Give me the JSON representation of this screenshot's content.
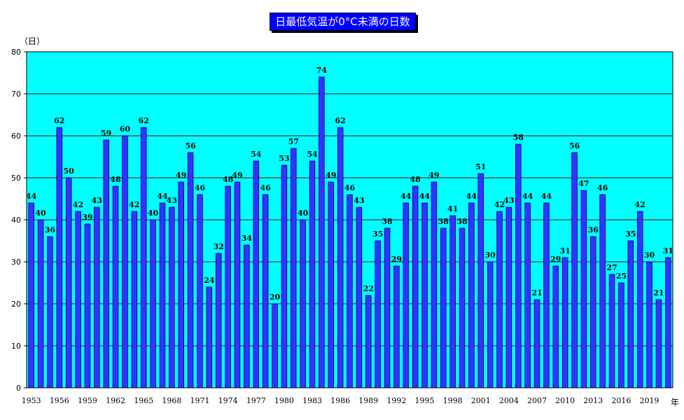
{
  "chart_data": {
    "type": "bar",
    "title": "日最低気温が0°C未満の日数",
    "ylabel": "（日）",
    "xlabel": "年",
    "ylim": [
      0,
      80
    ],
    "yticks": [
      0,
      10,
      20,
      30,
      40,
      50,
      60,
      70,
      80
    ],
    "grid": true,
    "plot_background": "#00ffff",
    "bar_color": "#3333ff",
    "gridline_color": "#800000",
    "x_tick_labels": [
      "1953",
      "1956",
      "1959",
      "1962",
      "1965",
      "1968",
      "1971",
      "1974",
      "1977",
      "1980",
      "1983",
      "1986",
      "1989",
      "1992",
      "1995",
      "1998",
      "2001",
      "2004",
      "2007",
      "2010",
      "2013",
      "2016",
      "2019"
    ],
    "categories": [
      "1953",
      "1954",
      "1955",
      "1956",
      "1957",
      "1958",
      "1959",
      "1960",
      "1961",
      "1962",
      "1963",
      "1964",
      "1965",
      "1966",
      "1967",
      "1968",
      "1969",
      "1970",
      "1971",
      "1972",
      "1973",
      "1974",
      "1975",
      "1976",
      "1977",
      "1978",
      "1979",
      "1980",
      "1981",
      "1982",
      "1983",
      "1984",
      "1985",
      "1986",
      "1987",
      "1988",
      "1989",
      "1990",
      "1991",
      "1992",
      "1993",
      "1994",
      "1995",
      "1996",
      "1997",
      "1998",
      "1999",
      "2000",
      "2001",
      "2002",
      "2003",
      "2004",
      "2005",
      "2006",
      "2007",
      "2008",
      "2009",
      "2010",
      "2011",
      "2012",
      "2013",
      "2014",
      "2015",
      "2016",
      "2017",
      "2018",
      "2019",
      "2020",
      "2021"
    ],
    "values": [
      44,
      40,
      36,
      62,
      50,
      42,
      39,
      43,
      59,
      48,
      60,
      42,
      62,
      40,
      44,
      43,
      49,
      56,
      46,
      24,
      32,
      48,
      49,
      34,
      54,
      46,
      20,
      53,
      57,
      40,
      54,
      74,
      49,
      62,
      46,
      43,
      22,
      35,
      38,
      29,
      44,
      48,
      44,
      49,
      38,
      41,
      38,
      44,
      51,
      30,
      42,
      43,
      58,
      44,
      21,
      44,
      29,
      31,
      56,
      47,
      36,
      46,
      27,
      25,
      35,
      42,
      30,
      21,
      31
    ]
  }
}
